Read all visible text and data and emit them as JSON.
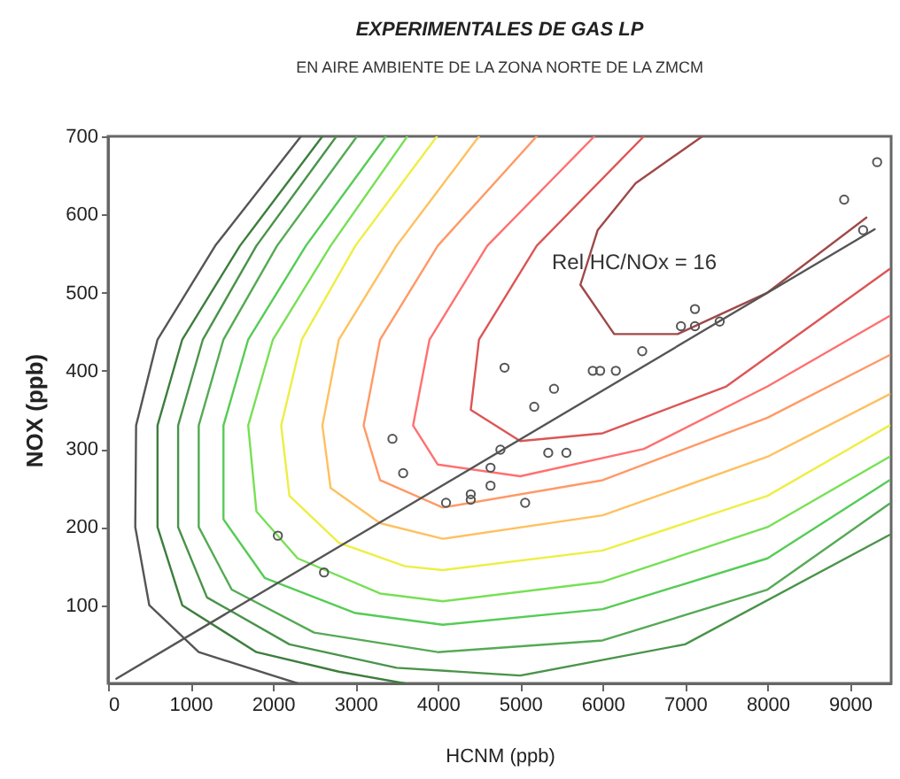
{
  "chart_data": {
    "type": "line",
    "title": "EXPERIMENTALES DE GAS LP",
    "subtitle": "EN AIRE AMBIENTE DE LA ZONA NORTE DE LA ZMCM",
    "xlabel": "HCNM (ppb)",
    "ylabel": "NOX (ppb)",
    "xlim": [
      0,
      9500
    ],
    "xticks": [
      0,
      1000,
      2000,
      3000,
      4000,
      5000,
      6000,
      7000,
      8000,
      9000
    ],
    "ylim": [
      0,
      700
    ],
    "yticks": [
      100,
      200,
      300,
      400,
      500,
      600,
      700
    ],
    "grid": false,
    "annotations": [
      "Rel HC/NOx = 16"
    ],
    "series": [
      {
        "color": "#555555",
        "x": [
          2340,
          1300,
          600,
          340,
          330,
          500,
          1100,
          2300
        ],
        "values": [
          700,
          560,
          440,
          330,
          200,
          100,
          40,
          0
        ]
      },
      {
        "color": "#3d7d3d",
        "x": [
          2600,
          1600,
          900,
          600,
          600,
          900,
          1800,
          2800,
          3600
        ],
        "values": [
          700,
          560,
          440,
          330,
          200,
          100,
          40,
          15,
          0
        ]
      },
      {
        "color": "#4a934a",
        "x": [
          2770,
          1800,
          1150,
          850,
          850,
          1200,
          2200,
          3500,
          5000,
          7000,
          9480
        ],
        "values": [
          700,
          560,
          440,
          330,
          200,
          110,
          50,
          20,
          10,
          50,
          190
        ]
      },
      {
        "color": "#55aa55",
        "x": [
          3020,
          2050,
          1400,
          1100,
          1100,
          1500,
          2500,
          4000,
          6000,
          8000,
          9480
        ],
        "values": [
          700,
          560,
          440,
          330,
          200,
          120,
          65,
          40,
          55,
          120,
          230
        ]
      },
      {
        "color": "#55cc55",
        "x": [
          3370,
          2400,
          1700,
          1400,
          1400,
          1900,
          3000,
          4060,
          6000,
          8000,
          9480
        ],
        "values": [
          700,
          560,
          440,
          330,
          210,
          135,
          90,
          75,
          95,
          160,
          260
        ]
      },
      {
        "color": "#77e055",
        "x": [
          3630,
          2700,
          2000,
          1700,
          1800,
          2300,
          3300,
          4060,
          6000,
          8000,
          9480
        ],
        "values": [
          700,
          560,
          440,
          330,
          220,
          160,
          115,
          105,
          130,
          200,
          290
        ]
      },
      {
        "color": "#eeee44",
        "x": [
          3990,
          3000,
          2350,
          2100,
          2200,
          2800,
          3600,
          4060,
          6000,
          8000,
          9480
        ],
        "values": [
          700,
          560,
          440,
          330,
          240,
          180,
          150,
          145,
          170,
          240,
          330
        ]
      },
      {
        "color": "#ffc060",
        "x": [
          4500,
          3500,
          2800,
          2600,
          2700,
          3300,
          4060,
          6000,
          8000,
          9480
        ],
        "values": [
          700,
          560,
          440,
          330,
          250,
          205,
          185,
          215,
          290,
          370
        ]
      },
      {
        "color": "#ff9966",
        "x": [
          5200,
          4000,
          3300,
          3100,
          3300,
          4060,
          6000,
          8000,
          9480
        ],
        "values": [
          700,
          560,
          440,
          330,
          260,
          225,
          260,
          340,
          420
        ]
      },
      {
        "color": "#ff7070",
        "x": [
          5900,
          4600,
          3900,
          3700,
          4000,
          5000,
          6500,
          8000,
          9480
        ],
        "values": [
          700,
          560,
          440,
          330,
          280,
          265,
          300,
          380,
          470
        ]
      },
      {
        "color": "#dd5555",
        "x": [
          6500,
          5200,
          4500,
          4400,
          5000,
          6000,
          7500,
          9480
        ],
        "values": [
          700,
          560,
          440,
          350,
          310,
          320,
          380,
          530
        ]
      },
      {
        "color": "#a04848",
        "x": [
          7210,
          6400,
          5940,
          5730,
          6140,
          6910,
          8000,
          9200
        ],
        "values": [
          700,
          640,
          580,
          510,
          447,
          447,
          500,
          596
        ]
      },
      {
        "color": "#555555",
        "x": [
          100,
          9300
        ],
        "values": [
          6,
          581
        ]
      },
      {
        "type": "scatter",
        "marker": "circle",
        "color": "#555555",
        "x": [
          2060,
          2620,
          3450,
          3580,
          4100,
          4400,
          4400,
          4640,
          4640,
          4760,
          5060,
          4810,
          5170,
          5410,
          5340,
          5560,
          5880,
          5970,
          6160,
          6480,
          6950,
          7120,
          7120,
          7420,
          8930,
          9160,
          9330
        ],
        "values": [
          189,
          142,
          313,
          269,
          231,
          242,
          235,
          276,
          253,
          299,
          231,
          404,
          354,
          377,
          295,
          295,
          400,
          400,
          400,
          425,
          457,
          457,
          479,
          463,
          619,
          580,
          667
        ]
      }
    ]
  }
}
